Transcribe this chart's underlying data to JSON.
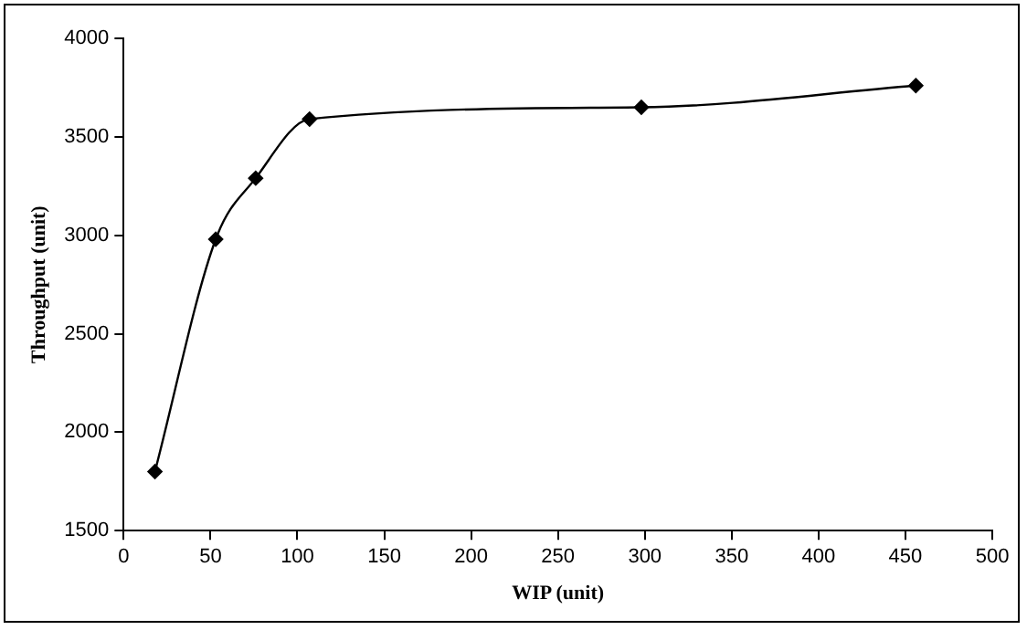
{
  "chart_data": {
    "type": "line",
    "xlabel": "WIP (unit)",
    "ylabel": "Throughput (unit)",
    "x": [
      18,
      53,
      76,
      107,
      298,
      456
    ],
    "series": [
      {
        "color": "#000000",
        "values": [
          1800,
          2980,
          3290,
          3590,
          3650,
          3760
        ]
      }
    ],
    "xlim": [
      0,
      500
    ],
    "xticks": [
      0,
      50,
      100,
      150,
      200,
      250,
      300,
      350,
      400,
      450,
      500
    ],
    "ylim": [
      1500,
      4000
    ],
    "yticks": [
      1500,
      2000,
      2500,
      3000,
      3500,
      4000
    ],
    "grid": false,
    "legend": false,
    "marker": "diamond",
    "line_style": "solid"
  }
}
